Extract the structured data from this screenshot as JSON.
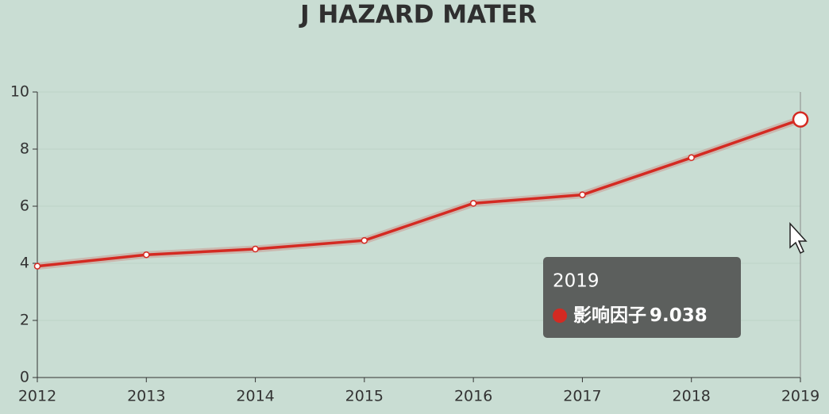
{
  "chart_data": {
    "type": "line",
    "title": "J HAZARD MATER",
    "categories": [
      "2012",
      "2013",
      "2014",
      "2015",
      "2016",
      "2017",
      "2018",
      "2019"
    ],
    "series": [
      {
        "name": "影响因子",
        "color": "#d42a22",
        "values": [
          3.9,
          4.3,
          4.5,
          4.8,
          6.1,
          6.4,
          7.7,
          9.038
        ]
      }
    ],
    "ylim": [
      0,
      10
    ],
    "yticks": [
      0,
      2,
      4,
      6,
      8,
      10
    ],
    "grid": true
  }
}
